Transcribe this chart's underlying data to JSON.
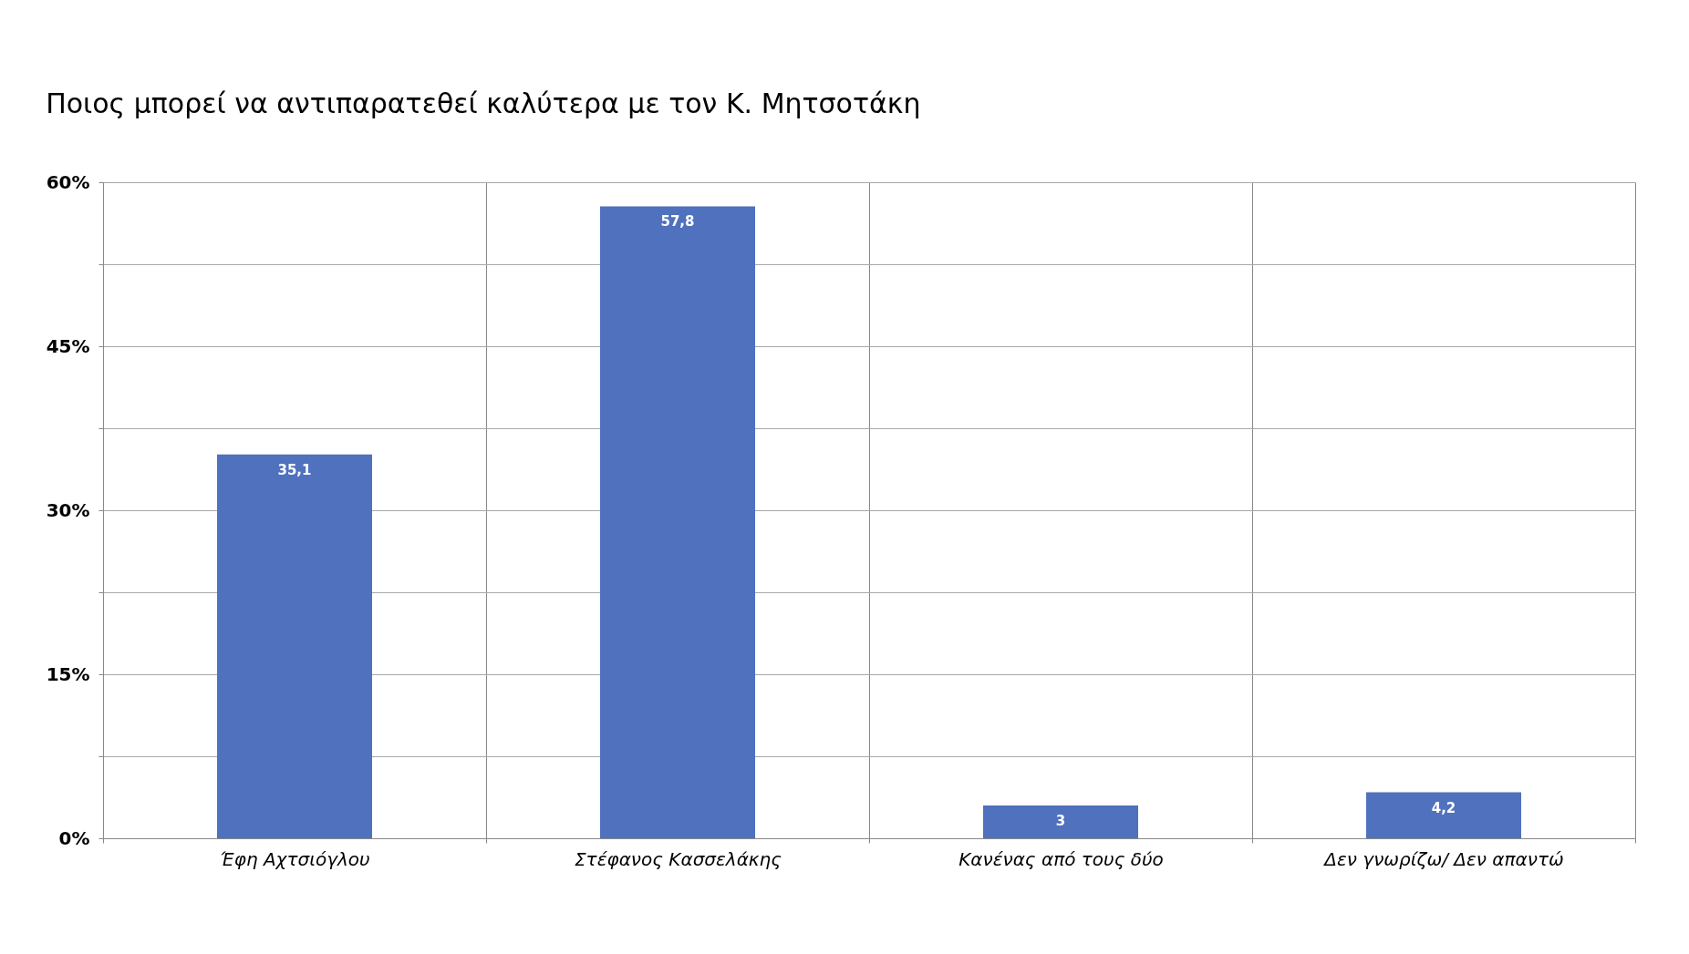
{
  "chart_data": {
    "type": "bar",
    "title": "Ποιος μπορεί να αντιπαρατεθεί καλύτερα με τον Κ. Μητσοτάκη",
    "categories": [
      "Έφη Αχτσιόγλου",
      "Στέφανος Κασσελάκης",
      "Κανένας από τους δύο",
      "Δεν γνωρίζω/  Δεν απαντώ"
    ],
    "values": [
      35.1,
      57.8,
      3,
      4.2
    ],
    "value_labels": [
      "35,1",
      "57,8",
      "3",
      "4,2"
    ],
    "color": "#4f71be",
    "ylim": [
      0,
      60
    ],
    "yticks": [
      {
        "value": 0,
        "label": "0%"
      },
      {
        "value": 7.5,
        "label": null
      },
      {
        "value": 15,
        "label": "15%"
      },
      {
        "value": 22.5,
        "label": null
      },
      {
        "value": 30,
        "label": "30%"
      },
      {
        "value": 37.5,
        "label": null
      },
      {
        "value": 45,
        "label": "45%"
      },
      {
        "value": 52.5,
        "label": null
      },
      {
        "value": 60,
        "label": "60%"
      }
    ],
    "grid": true
  }
}
